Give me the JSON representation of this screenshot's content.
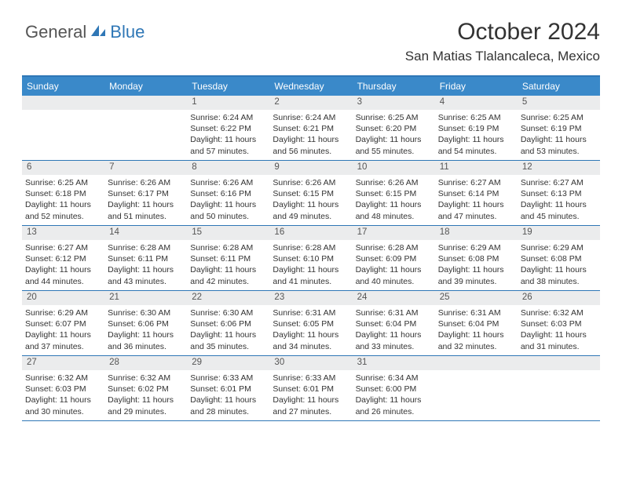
{
  "logo": {
    "general": "General",
    "blue": "Blue"
  },
  "title": "October 2024",
  "location": "San Matias Tlalancaleca, Mexico",
  "colors": {
    "accent": "#2f77b6",
    "header_bg": "#3a89c9",
    "daynum_bg": "#ebeced",
    "text": "#333333",
    "muted": "#555555",
    "white": "#ffffff"
  },
  "weekdays": [
    "Sunday",
    "Monday",
    "Tuesday",
    "Wednesday",
    "Thursday",
    "Friday",
    "Saturday"
  ],
  "weeks": [
    [
      {
        "day": "",
        "sunrise": "",
        "sunset": "",
        "daylight": ""
      },
      {
        "day": "",
        "sunrise": "",
        "sunset": "",
        "daylight": ""
      },
      {
        "day": "1",
        "sunrise": "Sunrise: 6:24 AM",
        "sunset": "Sunset: 6:22 PM",
        "daylight": "Daylight: 11 hours and 57 minutes."
      },
      {
        "day": "2",
        "sunrise": "Sunrise: 6:24 AM",
        "sunset": "Sunset: 6:21 PM",
        "daylight": "Daylight: 11 hours and 56 minutes."
      },
      {
        "day": "3",
        "sunrise": "Sunrise: 6:25 AM",
        "sunset": "Sunset: 6:20 PM",
        "daylight": "Daylight: 11 hours and 55 minutes."
      },
      {
        "day": "4",
        "sunrise": "Sunrise: 6:25 AM",
        "sunset": "Sunset: 6:19 PM",
        "daylight": "Daylight: 11 hours and 54 minutes."
      },
      {
        "day": "5",
        "sunrise": "Sunrise: 6:25 AM",
        "sunset": "Sunset: 6:19 PM",
        "daylight": "Daylight: 11 hours and 53 minutes."
      }
    ],
    [
      {
        "day": "6",
        "sunrise": "Sunrise: 6:25 AM",
        "sunset": "Sunset: 6:18 PM",
        "daylight": "Daylight: 11 hours and 52 minutes."
      },
      {
        "day": "7",
        "sunrise": "Sunrise: 6:26 AM",
        "sunset": "Sunset: 6:17 PM",
        "daylight": "Daylight: 11 hours and 51 minutes."
      },
      {
        "day": "8",
        "sunrise": "Sunrise: 6:26 AM",
        "sunset": "Sunset: 6:16 PM",
        "daylight": "Daylight: 11 hours and 50 minutes."
      },
      {
        "day": "9",
        "sunrise": "Sunrise: 6:26 AM",
        "sunset": "Sunset: 6:15 PM",
        "daylight": "Daylight: 11 hours and 49 minutes."
      },
      {
        "day": "10",
        "sunrise": "Sunrise: 6:26 AM",
        "sunset": "Sunset: 6:15 PM",
        "daylight": "Daylight: 11 hours and 48 minutes."
      },
      {
        "day": "11",
        "sunrise": "Sunrise: 6:27 AM",
        "sunset": "Sunset: 6:14 PM",
        "daylight": "Daylight: 11 hours and 47 minutes."
      },
      {
        "day": "12",
        "sunrise": "Sunrise: 6:27 AM",
        "sunset": "Sunset: 6:13 PM",
        "daylight": "Daylight: 11 hours and 45 minutes."
      }
    ],
    [
      {
        "day": "13",
        "sunrise": "Sunrise: 6:27 AM",
        "sunset": "Sunset: 6:12 PM",
        "daylight": "Daylight: 11 hours and 44 minutes."
      },
      {
        "day": "14",
        "sunrise": "Sunrise: 6:28 AM",
        "sunset": "Sunset: 6:11 PM",
        "daylight": "Daylight: 11 hours and 43 minutes."
      },
      {
        "day": "15",
        "sunrise": "Sunrise: 6:28 AM",
        "sunset": "Sunset: 6:11 PM",
        "daylight": "Daylight: 11 hours and 42 minutes."
      },
      {
        "day": "16",
        "sunrise": "Sunrise: 6:28 AM",
        "sunset": "Sunset: 6:10 PM",
        "daylight": "Daylight: 11 hours and 41 minutes."
      },
      {
        "day": "17",
        "sunrise": "Sunrise: 6:28 AM",
        "sunset": "Sunset: 6:09 PM",
        "daylight": "Daylight: 11 hours and 40 minutes."
      },
      {
        "day": "18",
        "sunrise": "Sunrise: 6:29 AM",
        "sunset": "Sunset: 6:08 PM",
        "daylight": "Daylight: 11 hours and 39 minutes."
      },
      {
        "day": "19",
        "sunrise": "Sunrise: 6:29 AM",
        "sunset": "Sunset: 6:08 PM",
        "daylight": "Daylight: 11 hours and 38 minutes."
      }
    ],
    [
      {
        "day": "20",
        "sunrise": "Sunrise: 6:29 AM",
        "sunset": "Sunset: 6:07 PM",
        "daylight": "Daylight: 11 hours and 37 minutes."
      },
      {
        "day": "21",
        "sunrise": "Sunrise: 6:30 AM",
        "sunset": "Sunset: 6:06 PM",
        "daylight": "Daylight: 11 hours and 36 minutes."
      },
      {
        "day": "22",
        "sunrise": "Sunrise: 6:30 AM",
        "sunset": "Sunset: 6:06 PM",
        "daylight": "Daylight: 11 hours and 35 minutes."
      },
      {
        "day": "23",
        "sunrise": "Sunrise: 6:31 AM",
        "sunset": "Sunset: 6:05 PM",
        "daylight": "Daylight: 11 hours and 34 minutes."
      },
      {
        "day": "24",
        "sunrise": "Sunrise: 6:31 AM",
        "sunset": "Sunset: 6:04 PM",
        "daylight": "Daylight: 11 hours and 33 minutes."
      },
      {
        "day": "25",
        "sunrise": "Sunrise: 6:31 AM",
        "sunset": "Sunset: 6:04 PM",
        "daylight": "Daylight: 11 hours and 32 minutes."
      },
      {
        "day": "26",
        "sunrise": "Sunrise: 6:32 AM",
        "sunset": "Sunset: 6:03 PM",
        "daylight": "Daylight: 11 hours and 31 minutes."
      }
    ],
    [
      {
        "day": "27",
        "sunrise": "Sunrise: 6:32 AM",
        "sunset": "Sunset: 6:03 PM",
        "daylight": "Daylight: 11 hours and 30 minutes."
      },
      {
        "day": "28",
        "sunrise": "Sunrise: 6:32 AM",
        "sunset": "Sunset: 6:02 PM",
        "daylight": "Daylight: 11 hours and 29 minutes."
      },
      {
        "day": "29",
        "sunrise": "Sunrise: 6:33 AM",
        "sunset": "Sunset: 6:01 PM",
        "daylight": "Daylight: 11 hours and 28 minutes."
      },
      {
        "day": "30",
        "sunrise": "Sunrise: 6:33 AM",
        "sunset": "Sunset: 6:01 PM",
        "daylight": "Daylight: 11 hours and 27 minutes."
      },
      {
        "day": "31",
        "sunrise": "Sunrise: 6:34 AM",
        "sunset": "Sunset: 6:00 PM",
        "daylight": "Daylight: 11 hours and 26 minutes."
      },
      {
        "day": "",
        "sunrise": "",
        "sunset": "",
        "daylight": ""
      },
      {
        "day": "",
        "sunrise": "",
        "sunset": "",
        "daylight": ""
      }
    ]
  ]
}
